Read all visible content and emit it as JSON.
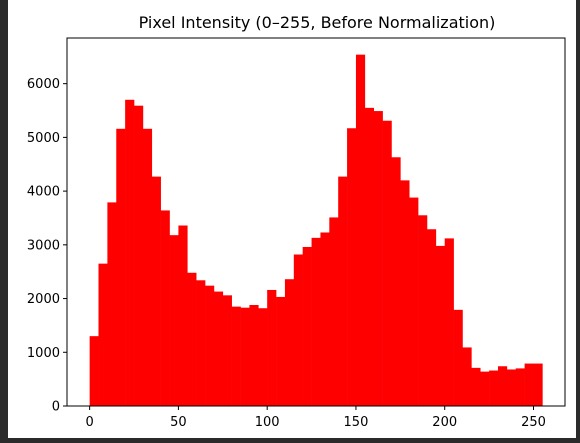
{
  "chart_data": {
    "type": "bar",
    "title": "Pixel Intensity (0–255, Before Normalization)",
    "xlabel": "",
    "ylabel": "",
    "bar_color": "#ff0000",
    "xlim": [
      -12.75,
      267.75
    ],
    "ylim": [
      0,
      6850
    ],
    "bin_width": 5,
    "x_ticks": [
      0,
      50,
      100,
      150,
      200,
      250
    ],
    "y_ticks": [
      0,
      1000,
      2000,
      3000,
      4000,
      5000,
      6000
    ],
    "bin_starts": [
      0,
      5,
      10,
      15,
      20,
      25,
      30,
      35,
      40,
      45,
      50,
      55,
      60,
      65,
      70,
      75,
      80,
      85,
      90,
      95,
      100,
      105,
      110,
      115,
      120,
      125,
      130,
      135,
      140,
      145,
      150,
      155,
      160,
      165,
      170,
      175,
      180,
      185,
      190,
      195,
      200,
      205,
      210,
      215,
      220,
      225,
      230,
      235,
      240,
      245,
      250
    ],
    "values": [
      1300,
      2650,
      3790,
      5160,
      5700,
      5590,
      5160,
      4270,
      3640,
      3180,
      3360,
      2480,
      2340,
      2240,
      2130,
      2060,
      1850,
      1830,
      1880,
      1820,
      2160,
      2030,
      2360,
      2820,
      2960,
      3130,
      3230,
      3510,
      4270,
      5170,
      6540,
      5550,
      5490,
      5310,
      4630,
      4200,
      3880,
      3550,
      3290,
      2980,
      3120,
      1790,
      1090,
      710,
      640,
      660,
      740,
      680,
      700,
      790,
      790
    ]
  }
}
